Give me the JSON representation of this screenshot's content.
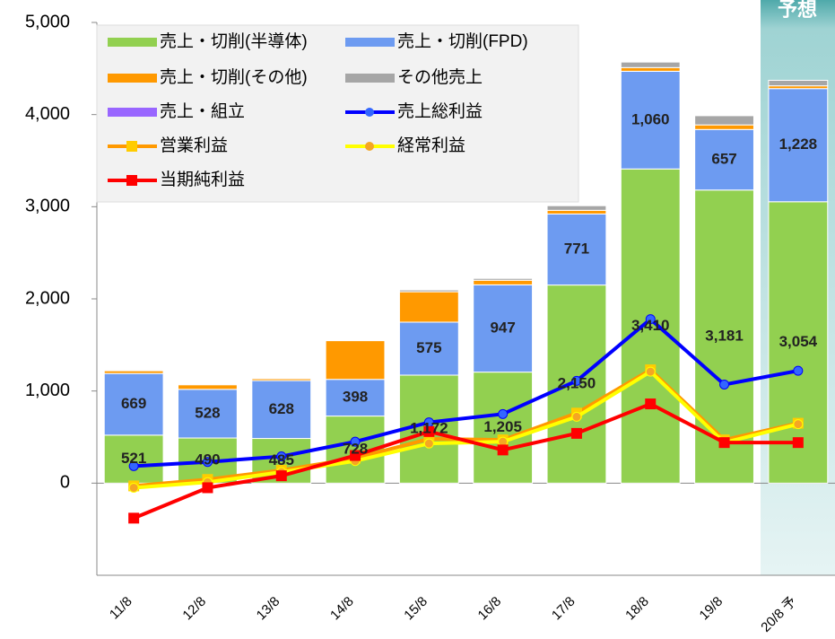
{
  "chart_data": {
    "type": "bar",
    "annotation": "予想",
    "categories": [
      "11/8",
      "12/8",
      "13/8",
      "14/8",
      "15/8",
      "16/8",
      "17/8",
      "18/8",
      "19/8",
      "20/8 予"
    ],
    "ylim": [
      -1000,
      5000
    ],
    "yticks": [
      {
        "value": 0,
        "label": "0"
      },
      {
        "value": 1000,
        "label": "1,000"
      },
      {
        "value": 2000,
        "label": "2,000"
      },
      {
        "value": 3000,
        "label": "3,000"
      },
      {
        "value": 4000,
        "label": "4,000"
      },
      {
        "value": 5000,
        "label": "5,000"
      }
    ],
    "series": [
      {
        "name": "売上・切削(半導体)",
        "type": "bar",
        "color": "#92d050",
        "values": [
          521,
          490,
          485,
          728,
          1172,
          1205,
          2150,
          3410,
          3181,
          3054
        ],
        "value_labels": [
          "521",
          "490",
          "485",
          "728",
          "1,172",
          "1,205",
          "2,150",
          "3,410",
          "3,181",
          "3,054"
        ]
      },
      {
        "name": "売上・切削(FPD)",
        "type": "bar",
        "color": "#6d9bf1",
        "values": [
          669,
          528,
          628,
          398,
          575,
          947,
          771,
          1060,
          657,
          1228
        ],
        "value_labels": [
          "669",
          "528",
          "628",
          "398",
          "575",
          "947",
          "771",
          "1,060",
          "657",
          "1,228"
        ]
      },
      {
        "name": "売上・切削(その他)",
        "type": "bar",
        "color": "#ff9900",
        "values": [
          30,
          50,
          20,
          420,
          330,
          50,
          40,
          40,
          50,
          30
        ]
      },
      {
        "name": "その他売上",
        "type": "bar",
        "color": "#a6a6a6",
        "values": [
          10,
          10,
          10,
          0,
          20,
          20,
          50,
          60,
          100,
          60
        ]
      },
      {
        "name": "売上・組立",
        "type": "bar",
        "color": "#9966ff",
        "values": [
          0,
          0,
          0,
          0,
          0,
          0,
          0,
          0,
          0,
          0
        ]
      },
      {
        "name": "売上総利益",
        "type": "line",
        "color": "#0000ff",
        "marker": "circle",
        "marker_color": "#3366ff",
        "values": [
          185,
          230,
          290,
          450,
          660,
          750,
          1110,
          1780,
          1070,
          1220
        ]
      },
      {
        "name": "営業利益",
        "type": "line",
        "color": "#ff9900",
        "marker": "square",
        "marker_color": "#ffcc00",
        "values": [
          -30,
          40,
          140,
          270,
          480,
          470,
          760,
          1230,
          470,
          650
        ]
      },
      {
        "name": "経常利益",
        "type": "line",
        "color": "#ffff00",
        "marker": "circle",
        "marker_color": "#f5a623",
        "values": [
          -50,
          10,
          120,
          240,
          430,
          450,
          720,
          1210,
          440,
          640
        ]
      },
      {
        "name": "当期純利益",
        "type": "line",
        "color": "#ff0000",
        "marker": "square",
        "marker_color": "#ff0000",
        "values": [
          -380,
          -50,
          80,
          300,
          560,
          360,
          540,
          860,
          440,
          440
        ]
      }
    ]
  }
}
